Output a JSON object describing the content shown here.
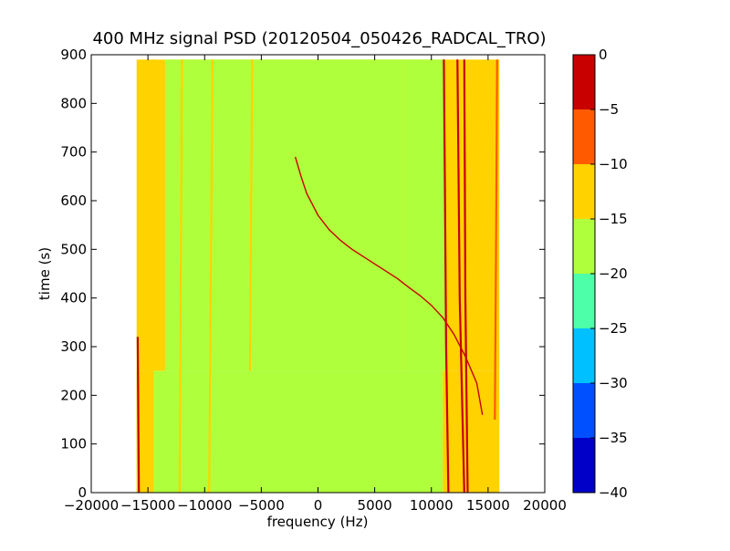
{
  "chart_data": {
    "type": "heatmap",
    "title": "400 MHz signal PSD (20120504_050426_RADCAL_TRO)",
    "xlabel": "frequency (Hz)",
    "ylabel": "time (s)",
    "xlim": [
      -20000,
      20000
    ],
    "ylim": [
      0,
      900
    ],
    "x_ticks": [
      -20000,
      -15000,
      -10000,
      -5000,
      0,
      5000,
      10000,
      15000,
      20000
    ],
    "y_ticks": [
      0,
      100,
      200,
      300,
      400,
      500,
      600,
      700,
      800,
      900
    ],
    "data_extent": {
      "x": [
        -16000,
        16000
      ],
      "t": [
        0,
        890
      ]
    },
    "colorbar": {
      "levels": [
        -40,
        -35,
        -30,
        -25,
        -20,
        -15,
        -10,
        -5,
        0
      ],
      "colors": [
        "#0000c8",
        "#0050ff",
        "#00c0ff",
        "#4cffa8",
        "#b0ff3c",
        "#ffd200",
        "#ff5a00",
        "#c80000"
      ]
    },
    "regions": [
      {
        "x": [
          -16000,
          16000
        ],
        "t": [
          250,
          890
        ],
        "level": -12.5
      },
      {
        "x": [
          -16000,
          11000
        ],
        "t": [
          0,
          250
        ],
        "level": -17.5
      },
      {
        "x": [
          -16000,
          -14500
        ],
        "t": [
          0,
          250
        ],
        "level": -12.5
      },
      {
        "x": [
          11000,
          16000
        ],
        "t": [
          0,
          250
        ],
        "level": -12.5
      },
      {
        "x": [
          -13500,
          7500
        ],
        "t": [
          250,
          890
        ],
        "level": -17.5
      },
      {
        "x": [
          7500,
          11200
        ],
        "t": [
          250,
          890
        ],
        "level": -17.5
      }
    ],
    "lines": [
      {
        "x": [
          -15800,
          -15900
        ],
        "t": [
          0,
          320
        ],
        "level": -2.5
      },
      {
        "x": [
          -14800,
          -14500
        ],
        "t": [
          0,
          890
        ],
        "level": -12.5
      },
      {
        "x": [
          -12200,
          -12000
        ],
        "t": [
          0,
          890
        ],
        "level": -12.5
      },
      {
        "x": [
          -9600,
          -9300
        ],
        "t": [
          0,
          890
        ],
        "level": -12.5
      },
      {
        "x": [
          -6000,
          -5800
        ],
        "t": [
          250,
          890
        ],
        "level": -12.5
      },
      {
        "x": [
          11500,
          11300,
          11200,
          11100
        ],
        "t": [
          0,
          300,
          600,
          890
        ],
        "level": -2.5
      },
      {
        "x": [
          12900,
          12500,
          12300
        ],
        "t": [
          0,
          400,
          890
        ],
        "level": 0
      },
      {
        "x": [
          13200,
          13000,
          12900
        ],
        "t": [
          0,
          400,
          890
        ],
        "level": 0
      },
      {
        "x": [
          15600,
          15700,
          15800
        ],
        "t": [
          150,
          500,
          890
        ],
        "level": -7.5
      }
    ],
    "sweep": {
      "x": [
        -2000,
        -1500,
        -1000,
        0,
        1000,
        2000,
        3000,
        4000,
        5000,
        6000,
        7000,
        8000,
        9000,
        10000,
        11000,
        12000,
        13000,
        14000,
        14500
      ],
      "t": [
        690,
        650,
        615,
        570,
        540,
        518,
        500,
        485,
        470,
        455,
        440,
        422,
        405,
        385,
        360,
        325,
        280,
        225,
        160
      ],
      "level": -2.5
    }
  }
}
